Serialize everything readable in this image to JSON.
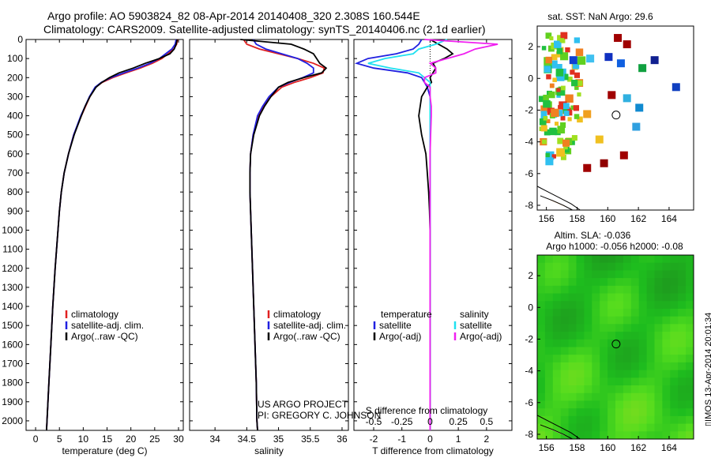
{
  "header": {
    "line1": "Argo profile: AO 5903824_82 08-Apr-2014 20140408_320 2.308S 160.544E",
    "line2": "Climatology: CARS2009. Satellite-adjusted climatology: synTS_20140406.nc (2.1d earlier)"
  },
  "credit": {
    "line1": "US ARGO PROJECT",
    "line2": "PI: GREGORY C. JOHNSON"
  },
  "stamp": "IMOS 13-Apr-2014 20:01:34",
  "colors": {
    "climatology": "#e02020",
    "satellite": "#2020e0",
    "argo": "#000000",
    "cyan": "#20e0f0",
    "magenta": "#f020f0"
  },
  "chart_data": [
    {
      "type": "line",
      "title": "",
      "xlabel": "temperature (deg C)",
      "ylabel": "",
      "xlim": [
        -2,
        31
      ],
      "ylim": [
        2050,
        0
      ],
      "xticks": [
        0,
        5,
        10,
        15,
        20,
        25,
        30
      ],
      "yticks": [
        0,
        100,
        200,
        300,
        400,
        500,
        600,
        700,
        800,
        900,
        1000,
        1100,
        1200,
        1300,
        1400,
        1500,
        1600,
        1700,
        1800,
        1900,
        2000
      ],
      "legend": [
        "climatology",
        "satellite-adj. clim.",
        "Argo(..raw -QC)"
      ],
      "legend_location": "lower-center",
      "depth": [
        0,
        25,
        50,
        75,
        100,
        125,
        150,
        175,
        200,
        225,
        250,
        300,
        350,
        400,
        500,
        600,
        700,
        800,
        900,
        1000,
        1200,
        1400,
        1600,
        1800,
        2000,
        2050
      ],
      "series": [
        {
          "name": "climatology",
          "values": [
            29.8,
            29.6,
            29.0,
            27.8,
            26.5,
            24.5,
            22.0,
            19.0,
            16.2,
            14.0,
            12.6,
            11.4,
            10.5,
            9.6,
            8.0,
            6.9,
            6.0,
            5.4,
            5.0,
            4.7,
            4.1,
            3.6,
            3.2,
            2.8,
            2.4,
            2.3
          ]
        },
        {
          "name": "satellite-adj. clim.",
          "values": [
            29.5,
            29.3,
            28.6,
            27.3,
            26.0,
            24.0,
            21.5,
            18.5,
            15.8,
            13.8,
            12.5,
            11.3,
            10.4,
            9.5,
            8.0,
            6.9,
            6.0,
            5.4,
            5.0,
            4.7,
            4.1,
            3.6,
            3.2,
            2.8,
            2.4,
            2.3
          ]
        },
        {
          "name": "Argo(..raw -QC)",
          "values": [
            29.7,
            29.5,
            29.1,
            28.2,
            26.0,
            23.0,
            20.5,
            17.5,
            15.5,
            13.9,
            12.7,
            11.4,
            10.4,
            9.6,
            8.1,
            6.9,
            6.0,
            5.4,
            5.0,
            4.7,
            4.1,
            3.6,
            3.2,
            2.8,
            2.4,
            2.3
          ]
        }
      ]
    },
    {
      "type": "line",
      "title": "",
      "xlabel": "salinity",
      "ylabel": "",
      "xlim": [
        33.6,
        36.1
      ],
      "ylim": [
        2050,
        0
      ],
      "xticks": [
        34,
        34.5,
        35,
        35.5,
        36
      ],
      "yticks": [],
      "legend": [
        "climatology",
        "satellite-adj. clim.",
        "Argo(..raw -QC)"
      ],
      "legend_location": "lower-right",
      "depth": [
        0,
        25,
        50,
        75,
        100,
        125,
        150,
        175,
        200,
        225,
        250,
        300,
        350,
        400,
        500,
        600,
        700,
        800,
        900,
        1000,
        1200,
        1400,
        1600,
        1800,
        2000,
        2050
      ],
      "series": [
        {
          "name": "climatology",
          "values": [
            34.45,
            34.5,
            34.7,
            35.0,
            35.3,
            35.55,
            35.72,
            35.7,
            35.5,
            35.25,
            35.05,
            34.88,
            34.76,
            34.68,
            34.6,
            34.56,
            34.55,
            34.55,
            34.56,
            34.57,
            34.59,
            34.61,
            34.63,
            34.65,
            34.66,
            34.67
          ]
        },
        {
          "name": "satellite-adj. clim.",
          "values": [
            34.6,
            34.65,
            34.8,
            35.05,
            35.3,
            35.45,
            35.55,
            35.55,
            35.38,
            35.18,
            35.0,
            34.85,
            34.75,
            34.67,
            34.6,
            34.56,
            34.55,
            34.55,
            34.56,
            34.57,
            34.59,
            34.61,
            34.63,
            34.65,
            34.66,
            34.67
          ]
        },
        {
          "name": "Argo(..raw -QC)",
          "values": [
            34.4,
            35.2,
            35.4,
            35.55,
            35.6,
            35.65,
            35.75,
            35.68,
            35.4,
            35.15,
            35.0,
            34.88,
            34.78,
            34.7,
            34.61,
            34.56,
            34.55,
            34.55,
            34.56,
            34.57,
            34.59,
            34.61,
            34.63,
            34.65,
            34.66,
            34.67
          ]
        }
      ]
    },
    {
      "type": "line",
      "title": "S difference from climatology",
      "xlabel": "T difference from climatology",
      "ylabel": "",
      "xlim": [
        -2.7,
        2.9
      ],
      "ylim": [
        2050,
        0
      ],
      "xticks": [
        -2,
        -1,
        0,
        1,
        2
      ],
      "top_xticks": [
        -0.5,
        -0.25,
        0,
        0.25,
        0.5
      ],
      "top_tick_labels": [
        "-0.5",
        "-0.25",
        "0",
        "0.25",
        "0.5"
      ],
      "yticks": [],
      "legend_headers": [
        "temperature",
        "salinity"
      ],
      "legend": [
        "satellite",
        "Argo(-adj)",
        "satellite",
        "Argo(-adj)"
      ],
      "legend_location": "lower-center",
      "depth": [
        0,
        25,
        50,
        75,
        100,
        125,
        150,
        175,
        200,
        225,
        250,
        300,
        350,
        400,
        500,
        600,
        700,
        800,
        900,
        1000,
        1200,
        1400,
        1600,
        1800,
        2000,
        2050
      ],
      "series": [
        {
          "name": "satellite",
          "values": [
            -0.3,
            -0.4,
            -0.6,
            -1.2,
            -2.2,
            -2.6,
            -2.0,
            -0.8,
            -0.3,
            -0.2,
            -0.1,
            0,
            0,
            0,
            0,
            0,
            0,
            0,
            0,
            0,
            0,
            0,
            0,
            0,
            0,
            0
          ]
        },
        {
          "name": "Argo(-adj)",
          "values": [
            0,
            0.3,
            0.6,
            0.8,
            0.5,
            0.1,
            0.2,
            0.1,
            0.0,
            0.05,
            -0.1,
            -0.3,
            -0.35,
            -0.4,
            -0.3,
            -0.15,
            -0.1,
            -0.05,
            -0.02,
            0,
            0,
            0,
            0,
            0,
            0,
            0
          ]
        },
        {
          "name": "satellite",
          "values": [
            0.15,
            0.05,
            -0.1,
            -0.15,
            -0.4,
            -0.55,
            -0.35,
            -0.1,
            -0.05,
            0,
            0,
            0,
            0,
            0,
            0,
            0,
            0,
            0,
            0,
            0,
            0,
            0,
            0,
            0,
            0,
            0
          ]
        },
        {
          "name": "Argo(-adj)",
          "values": [
            -0.05,
            0.6,
            0.4,
            0.3,
            0.15,
            0.0,
            0.05,
            0.05,
            -0.05,
            -0.05,
            0.0,
            0.0,
            0.01,
            0.01,
            0.005,
            0,
            0,
            0,
            0,
            0,
            0,
            0,
            0,
            0,
            0,
            0
          ]
        }
      ]
    },
    {
      "type": "heatmap",
      "title": "sat. SST: NaN Argo: 29.6",
      "xlabel": "",
      "ylabel": "",
      "xlim": [
        155.4,
        165.6
      ],
      "ylim": [
        -8.3,
        3.3
      ],
      "xticks": [
        156,
        158,
        160,
        162,
        164
      ],
      "yticks": [
        2,
        0,
        -2,
        -4,
        -6,
        -8
      ],
      "float_position": {
        "lon": 160.544,
        "lat": -2.308
      }
    },
    {
      "type": "heatmap",
      "title": "Altim. SLA: -0.036",
      "subtitle": "Argo h1000: -0.056 h2000: -0.08",
      "xlabel": "",
      "ylabel": "",
      "xlim": [
        155.4,
        165.6
      ],
      "ylim": [
        -8.3,
        3.3
      ],
      "xticks": [
        156,
        158,
        160,
        162,
        164
      ],
      "yticks": [
        2,
        0,
        -2,
        -4,
        -6,
        -8
      ],
      "float_position": {
        "lon": 160.544,
        "lat": -2.308
      }
    }
  ]
}
